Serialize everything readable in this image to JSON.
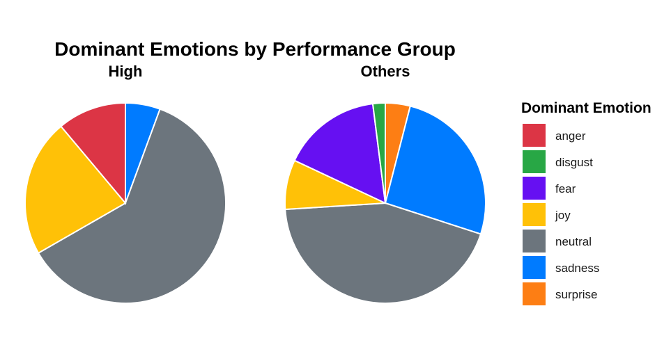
{
  "chart_data": {
    "type": "pie",
    "title": "Dominant Emotions by Performance Group",
    "legend": {
      "title": "Dominant Emotion",
      "placement": "right",
      "entries": [
        "anger",
        "disgust",
        "fear",
        "joy",
        "neutral",
        "sadness",
        "surprise"
      ]
    },
    "colors": {
      "anger": "#dc3545",
      "disgust": "#28a745",
      "fear": "#6610f2",
      "joy": "#ffc107",
      "neutral": "#6c757d",
      "sadness": "#007bff",
      "surprise": "#fd7e14"
    },
    "panels": [
      {
        "label": "High",
        "slices": [
          {
            "category": "sadness",
            "value": 5.6
          },
          {
            "category": "neutral",
            "value": 61.1
          },
          {
            "category": "joy",
            "value": 22.2
          },
          {
            "category": "anger",
            "value": 11.1
          }
        ]
      },
      {
        "label": "Others",
        "slices": [
          {
            "category": "surprise",
            "value": 4.0
          },
          {
            "category": "sadness",
            "value": 26.0
          },
          {
            "category": "neutral",
            "value": 44.0
          },
          {
            "category": "joy",
            "value": 8.0
          },
          {
            "category": "fear",
            "value": 16.0
          },
          {
            "category": "disgust",
            "value": 2.0
          }
        ]
      }
    ]
  }
}
